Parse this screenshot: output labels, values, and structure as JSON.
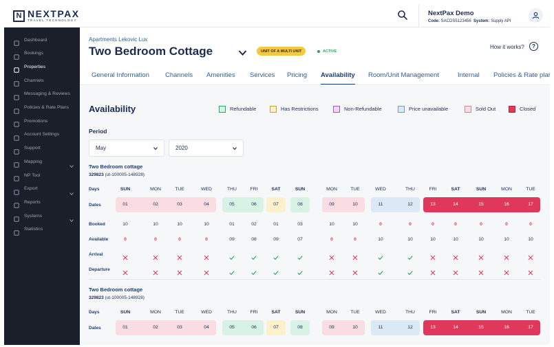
{
  "header": {
    "logo_name": "NEXTPAX",
    "logo_sub": "TRAVEL TECHNOLOGY",
    "account_name": "NextPax Demo",
    "code_label": "Code:",
    "code_value": "SACDS5123456",
    "system_label": "System:",
    "system_value": "Supply API"
  },
  "sidebar": {
    "items": [
      {
        "label": "Dashboard",
        "icon": "dashboard-icon"
      },
      {
        "label": "Bookings",
        "icon": "bookings-icon"
      },
      {
        "label": "Properties",
        "icon": "properties-icon",
        "active": true
      },
      {
        "label": "Channels",
        "icon": "channels-icon"
      },
      {
        "label": "Messaging & Reviews",
        "icon": "messaging-icon"
      },
      {
        "label": "Policies & Rate Plans",
        "icon": "policies-icon"
      },
      {
        "label": "Promotions",
        "icon": "promotions-icon"
      },
      {
        "label": "Account Settings",
        "icon": "settings-icon"
      },
      {
        "label": "Support",
        "icon": "support-icon"
      },
      {
        "label": "Mapping",
        "icon": "mapping-icon",
        "expandable": true
      },
      {
        "label": "NP Tool",
        "icon": "tool-icon"
      },
      {
        "label": "Export",
        "icon": "export-icon",
        "expandable": true
      },
      {
        "label": "Reports",
        "icon": "reports-icon"
      },
      {
        "label": "Systems",
        "icon": "systems-icon",
        "expandable": true
      },
      {
        "label": "Statistics",
        "icon": "statistics-icon"
      }
    ]
  },
  "property": {
    "crumb": "Apartments Lekovic Lux",
    "title": "Two Bedroom Cottage",
    "unit_badge": "UNIT OF A MULTI UNIT",
    "status": "ACTIVE",
    "how_link": "How it works?"
  },
  "tabs": [
    "General Information",
    "Channels",
    "Amenities",
    "Services",
    "Pricing",
    "Availability",
    "Room/Unit Management",
    "Internal",
    "Policies & Rate plans"
  ],
  "active_tab": "Availability",
  "availability": {
    "title": "Availability",
    "legend": [
      {
        "label": "Refundable",
        "color": "#d9f2e6",
        "border": "#2aa65a"
      },
      {
        "label": "Has Restrictions",
        "color": "#fdf0cc",
        "border": "#c9a13a"
      },
      {
        "label": "Non-Refundable",
        "color": "#ead7f2",
        "border": "#9a63b8"
      },
      {
        "label": "Price unavailable",
        "color": "#dbe8f5",
        "border": "#7b98bd"
      },
      {
        "label": "Sold Out",
        "color": "#fadde3",
        "border": "#c9889a"
      },
      {
        "label": "Closed",
        "color": "#e0385a",
        "border": "#b8253f"
      }
    ],
    "period_label": "Period",
    "month": "May",
    "year": "2020",
    "row_labels": {
      "days": "Days",
      "dates": "Dates",
      "booked": "Booked",
      "available": "Available",
      "arrival": "Arrival",
      "departure": "Departure"
    },
    "days": [
      "SUN",
      "MON",
      "TUE",
      "WED",
      "THU",
      "FRI",
      "SAT",
      "SUN",
      "MON",
      "TUE",
      "WED",
      "THU",
      "FRI",
      "SAT",
      "SUN",
      "MON",
      "TUE"
    ],
    "day_bold": [
      true,
      false,
      false,
      false,
      false,
      false,
      true,
      true,
      false,
      false,
      false,
      false,
      false,
      true,
      true,
      false,
      false
    ],
    "dates": [
      "01",
      "02",
      "03",
      "04",
      "05",
      "06",
      "07",
      "08",
      "09",
      "10",
      "11",
      "12",
      "13",
      "14",
      "15",
      "16",
      "17"
    ],
    "booked": [
      "10",
      "10",
      "10",
      "10",
      "01",
      "02",
      "01",
      "03",
      "10",
      "10",
      "0",
      "0",
      "0",
      "0",
      "0",
      "0",
      "0"
    ],
    "available": [
      "0",
      "0",
      "0",
      "0",
      "09",
      "08",
      "09",
      "07",
      "0",
      "0",
      "10",
      "10",
      "10",
      "10",
      "10",
      "10",
      "10"
    ],
    "arrival": [
      false,
      false,
      false,
      false,
      true,
      true,
      true,
      true,
      false,
      false,
      true,
      true,
      false,
      false,
      false,
      false,
      false
    ],
    "departure": [
      false,
      false,
      false,
      false,
      true,
      true,
      true,
      true,
      false,
      false,
      true,
      true,
      false,
      false,
      false,
      false,
      false
    ],
    "date_groups": [
      {
        "from": 0,
        "to": 3,
        "status": "Sold Out",
        "color": "#fadde3"
      },
      {
        "from": 4,
        "to": 5,
        "status": "Refundable",
        "color": "#d9f2e6"
      },
      {
        "from": 6,
        "to": 6,
        "status": "Has Restrictions",
        "color": "#fdf0cc"
      },
      {
        "from": 7,
        "to": 7,
        "status": "Refundable",
        "color": "#d9f2e6"
      },
      {
        "from": 8,
        "to": 9,
        "status": "Sold Out",
        "color": "#fadde3"
      },
      {
        "from": 10,
        "to": 11,
        "status": "Price unavailable",
        "color": "#dbe8f5"
      },
      {
        "from": 12,
        "to": 16,
        "status": "Closed",
        "color": "#e0385a"
      }
    ],
    "rooms": [
      {
        "name": "Two Bedroom cottage",
        "code": "329823",
        "code_suffix": "(ut-100005-148928)"
      },
      {
        "name": "Two Bedroom cottage",
        "code": "329823",
        "code_suffix": "(ut-100005-148928)"
      }
    ],
    "colors": {
      "check": "#2aa65a",
      "cross": "#e0385a"
    }
  }
}
